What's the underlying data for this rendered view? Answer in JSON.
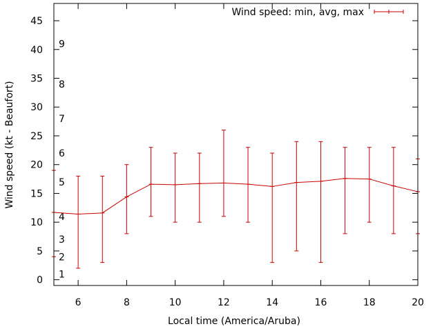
{
  "chart_data": {
    "type": "line",
    "title": "",
    "xlabel": "Local time (America/Aruba)",
    "ylabel": "Wind speed (kt - Beaufort)",
    "xlim": [
      5,
      20
    ],
    "ylim": [
      -1,
      48
    ],
    "x_ticks": [
      "6",
      "8",
      "10",
      "12",
      "14",
      "16",
      "18",
      "20"
    ],
    "y_ticks": [
      "0",
      "5",
      "10",
      "15",
      "20",
      "25",
      "30",
      "35",
      "40",
      "45"
    ],
    "legend": {
      "label": "Wind speed: min, avg, max",
      "position": "top-right"
    },
    "beaufort_scale": [
      {
        "label": "1",
        "value": 1
      },
      {
        "label": "2",
        "value": 4
      },
      {
        "label": "3",
        "value": 7
      },
      {
        "label": "4",
        "value": 11
      },
      {
        "label": "5",
        "value": 17
      },
      {
        "label": "6",
        "value": 22
      },
      {
        "label": "7",
        "value": 28
      },
      {
        "label": "8",
        "value": 34
      },
      {
        "label": "9",
        "value": 41
      }
    ],
    "series": [
      {
        "name": "Wind speed: min, avg, max",
        "color": "#cc0000",
        "x": [
          5,
          6,
          7,
          8,
          9,
          10,
          11,
          12,
          13,
          14,
          15,
          16,
          17,
          18,
          19,
          20
        ],
        "avg": [
          11.7,
          11.4,
          11.6,
          14.4,
          16.6,
          16.5,
          16.7,
          16.8,
          16.6,
          16.2,
          16.9,
          17.1,
          17.6,
          17.5,
          16.3,
          15.3
        ],
        "min": [
          4,
          2,
          3,
          8,
          11,
          10,
          10,
          11,
          10,
          3,
          5,
          3,
          8,
          10,
          8,
          8
        ],
        "max": [
          19,
          18,
          18,
          20,
          23,
          22,
          22,
          26,
          23,
          22,
          24,
          24,
          23,
          23,
          23,
          21
        ]
      }
    ]
  }
}
